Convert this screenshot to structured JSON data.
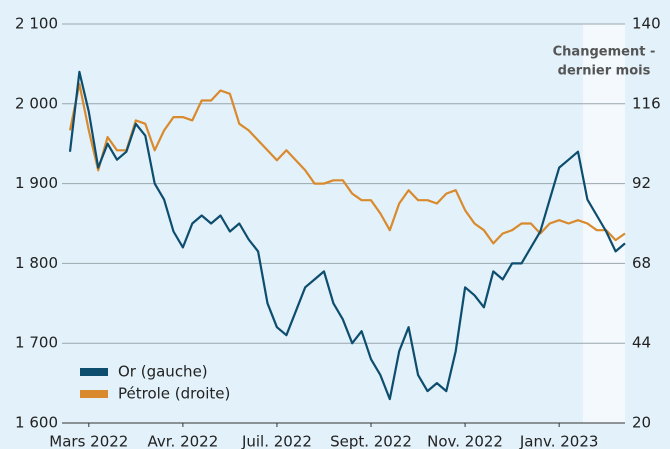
{
  "chart_data": {
    "type": "line",
    "annotation": [
      "Changement -",
      "dernier mois"
    ],
    "categories": [
      null,
      null,
      "Mars 2022",
      null,
      null,
      null,
      null,
      null,
      null,
      null,
      null,
      null,
      "Avr. 2022",
      null,
      null,
      null,
      null,
      null,
      null,
      null,
      null,
      null,
      "Juil. 2022",
      null,
      null,
      null,
      null,
      null,
      null,
      null,
      null,
      null,
      "Sept. 2022",
      null,
      null,
      null,
      null,
      null,
      null,
      null,
      null,
      null,
      "Nov. 2022",
      null,
      null,
      null,
      null,
      null,
      null,
      null,
      null,
      null,
      "Janv. 2023",
      null,
      null,
      null,
      null,
      null,
      null,
      null
    ],
    "series": [
      {
        "name": "Or (gauche)",
        "color": "#0d4d6e",
        "axis": "y",
        "values": [
          1940,
          2040,
          1990,
          1920,
          1950,
          1930,
          1940,
          1975,
          1960,
          1900,
          1880,
          1840,
          1820,
          1850,
          1860,
          1850,
          1860,
          1840,
          1850,
          1830,
          1815,
          1750,
          1720,
          1710,
          1740,
          1770,
          1780,
          1790,
          1750,
          1730,
          1700,
          1715,
          1680,
          1660,
          1630,
          1690,
          1720,
          1660,
          1640,
          1650,
          1640,
          1690,
          1770,
          1760,
          1745,
          1790,
          1780,
          1800,
          1800,
          1820,
          1840,
          1880,
          1920,
          1930,
          1940,
          1880,
          1860,
          1840,
          1815,
          1825
        ]
      },
      {
        "name": "Pétrole (droite)",
        "color": "#d98a2c",
        "axis": "y2",
        "values": [
          108,
          122,
          108,
          96,
          106,
          102,
          102,
          111,
          110,
          102,
          108,
          112,
          112,
          111,
          117,
          117,
          120,
          119,
          110,
          108,
          105,
          102,
          99,
          102,
          99,
          96,
          92,
          92,
          93,
          93,
          89,
          87,
          87,
          83,
          78,
          86,
          90,
          87,
          87,
          86,
          89,
          90,
          84,
          80,
          78,
          74,
          77,
          78,
          80,
          80,
          77,
          80,
          81,
          80,
          81,
          80,
          78,
          78,
          75,
          77
        ]
      }
    ],
    "ylim": [
      1600,
      2100
    ],
    "yticks": [
      {
        "value": 1600,
        "label": "1 600"
      },
      {
        "value": 1700,
        "label": "1 700"
      },
      {
        "value": 1800,
        "label": "1 800"
      },
      {
        "value": 1900,
        "label": "1 900"
      },
      {
        "value": 2000,
        "label": "2 000"
      },
      {
        "value": 2100,
        "label": "2 100"
      }
    ],
    "y2lim": [
      20,
      140
    ],
    "y2ticks": [
      20,
      44,
      68,
      92,
      116,
      140
    ],
    "grid": true
  }
}
